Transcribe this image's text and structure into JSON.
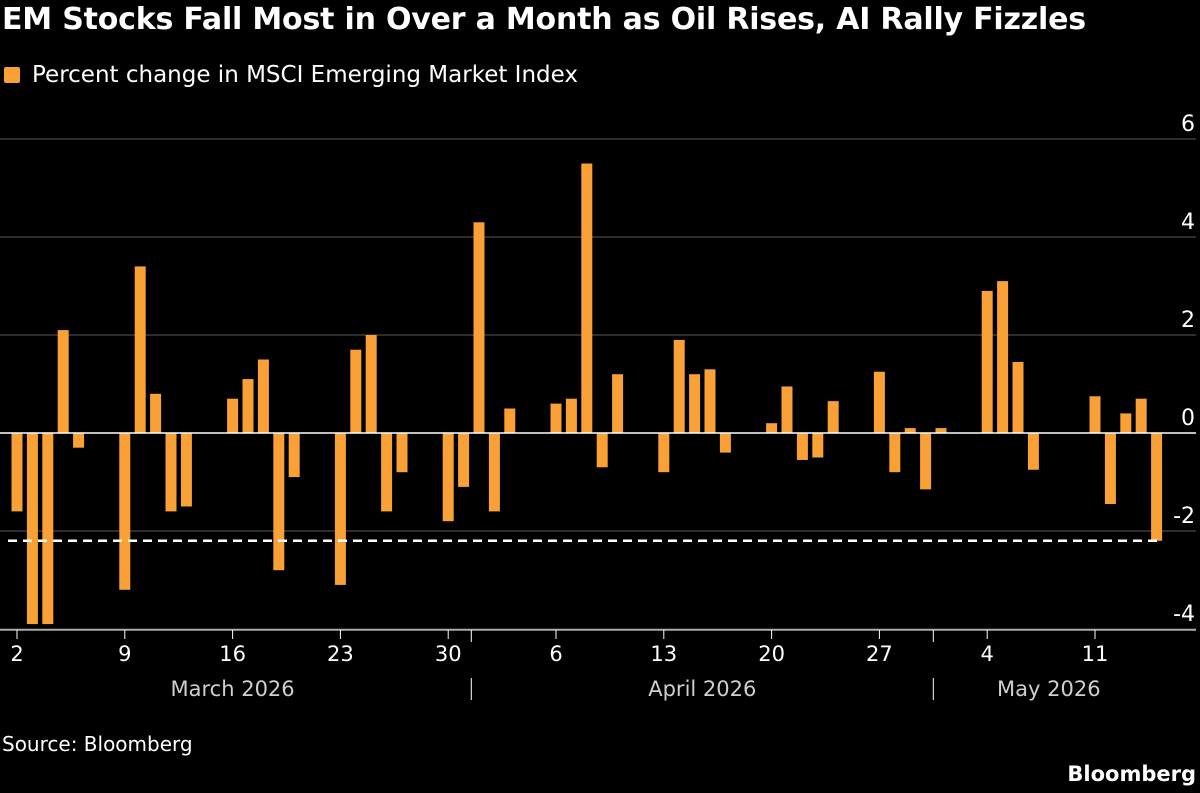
{
  "header": {
    "title": "EM Stocks Fall Most in Over a Month as Oil Rises, AI Rally Fizzles"
  },
  "footer": {
    "source": "Source: Bloomberg",
    "brand": "Bloomberg"
  },
  "colors": {
    "bar": "#f9a136",
    "background": "#000000",
    "grid": "#5a5a5a",
    "zero_line": "#ffffff",
    "reference_line": "#ffffff"
  },
  "chart_data": {
    "type": "bar",
    "legend": [
      "Percent change in MSCI Emerging Market Index"
    ],
    "legend_position": "top-left",
    "grid": true,
    "y_axis_side": "right",
    "ylim": [
      -4,
      6
    ],
    "yticks": [
      -4,
      -2,
      0,
      2,
      4,
      6
    ],
    "reference_line": {
      "value": -2.2,
      "style": "dashed"
    },
    "x_tick_labels": [
      {
        "date": "2026-03-02",
        "label": "2"
      },
      {
        "date": "2026-03-09",
        "label": "9"
      },
      {
        "date": "2026-03-16",
        "label": "16"
      },
      {
        "date": "2026-03-23",
        "label": "23"
      },
      {
        "date": "2026-03-30",
        "label": "30"
      },
      {
        "date": "2026-04-06",
        "label": "6"
      },
      {
        "date": "2026-04-13",
        "label": "13"
      },
      {
        "date": "2026-04-20",
        "label": "20"
      },
      {
        "date": "2026-04-27",
        "label": "27"
      },
      {
        "date": "2026-05-04",
        "label": "4"
      },
      {
        "date": "2026-05-11",
        "label": "11"
      }
    ],
    "months": [
      {
        "label": "March 2026",
        "start": "2026-03-01",
        "end": "2026-03-31"
      },
      {
        "label": "April 2026",
        "start": "2026-04-01",
        "end": "2026-04-30"
      },
      {
        "label": "May 2026",
        "start": "2026-05-01",
        "end": "2026-05-15"
      }
    ],
    "series": [
      {
        "name": "Percent change in MSCI Emerging Market Index",
        "x": [
          "2026-03-02",
          "2026-03-03",
          "2026-03-04",
          "2026-03-05",
          "2026-03-06",
          "2026-03-09",
          "2026-03-10",
          "2026-03-11",
          "2026-03-12",
          "2026-03-13",
          "2026-03-16",
          "2026-03-17",
          "2026-03-18",
          "2026-03-19",
          "2026-03-20",
          "2026-03-23",
          "2026-03-24",
          "2026-03-25",
          "2026-03-26",
          "2026-03-27",
          "2026-03-30",
          "2026-03-31",
          "2026-04-01",
          "2026-04-02",
          "2026-04-03",
          "2026-04-06",
          "2026-04-07",
          "2026-04-08",
          "2026-04-09",
          "2026-04-10",
          "2026-04-13",
          "2026-04-14",
          "2026-04-15",
          "2026-04-16",
          "2026-04-17",
          "2026-04-20",
          "2026-04-21",
          "2026-04-22",
          "2026-04-23",
          "2026-04-24",
          "2026-04-27",
          "2026-04-28",
          "2026-04-29",
          "2026-04-30",
          "2026-05-01",
          "2026-05-04",
          "2026-05-05",
          "2026-05-06",
          "2026-05-07",
          "2026-05-08",
          "2026-05-11",
          "2026-05-12",
          "2026-05-13",
          "2026-05-14",
          "2026-05-15"
        ],
        "values": [
          -1.6,
          -3.9,
          -3.9,
          2.1,
          -0.3,
          -3.2,
          3.4,
          0.8,
          -1.6,
          -1.5,
          0.7,
          1.1,
          1.5,
          -2.8,
          -0.9,
          -3.1,
          1.7,
          2.0,
          -1.6,
          -0.8,
          -1.8,
          -1.1,
          4.3,
          -1.6,
          0.5,
          0.6,
          0.7,
          5.5,
          -0.7,
          1.2,
          -0.8,
          1.9,
          1.2,
          1.3,
          -0.4,
          0.2,
          0.95,
          -0.55,
          -0.5,
          0.65,
          1.25,
          -0.8,
          0.1,
          -1.15,
          0.1,
          2.9,
          3.1,
          1.45,
          -0.75,
          0.0,
          0.75,
          -1.45,
          0.4,
          0.7,
          -2.2
        ]
      }
    ]
  }
}
